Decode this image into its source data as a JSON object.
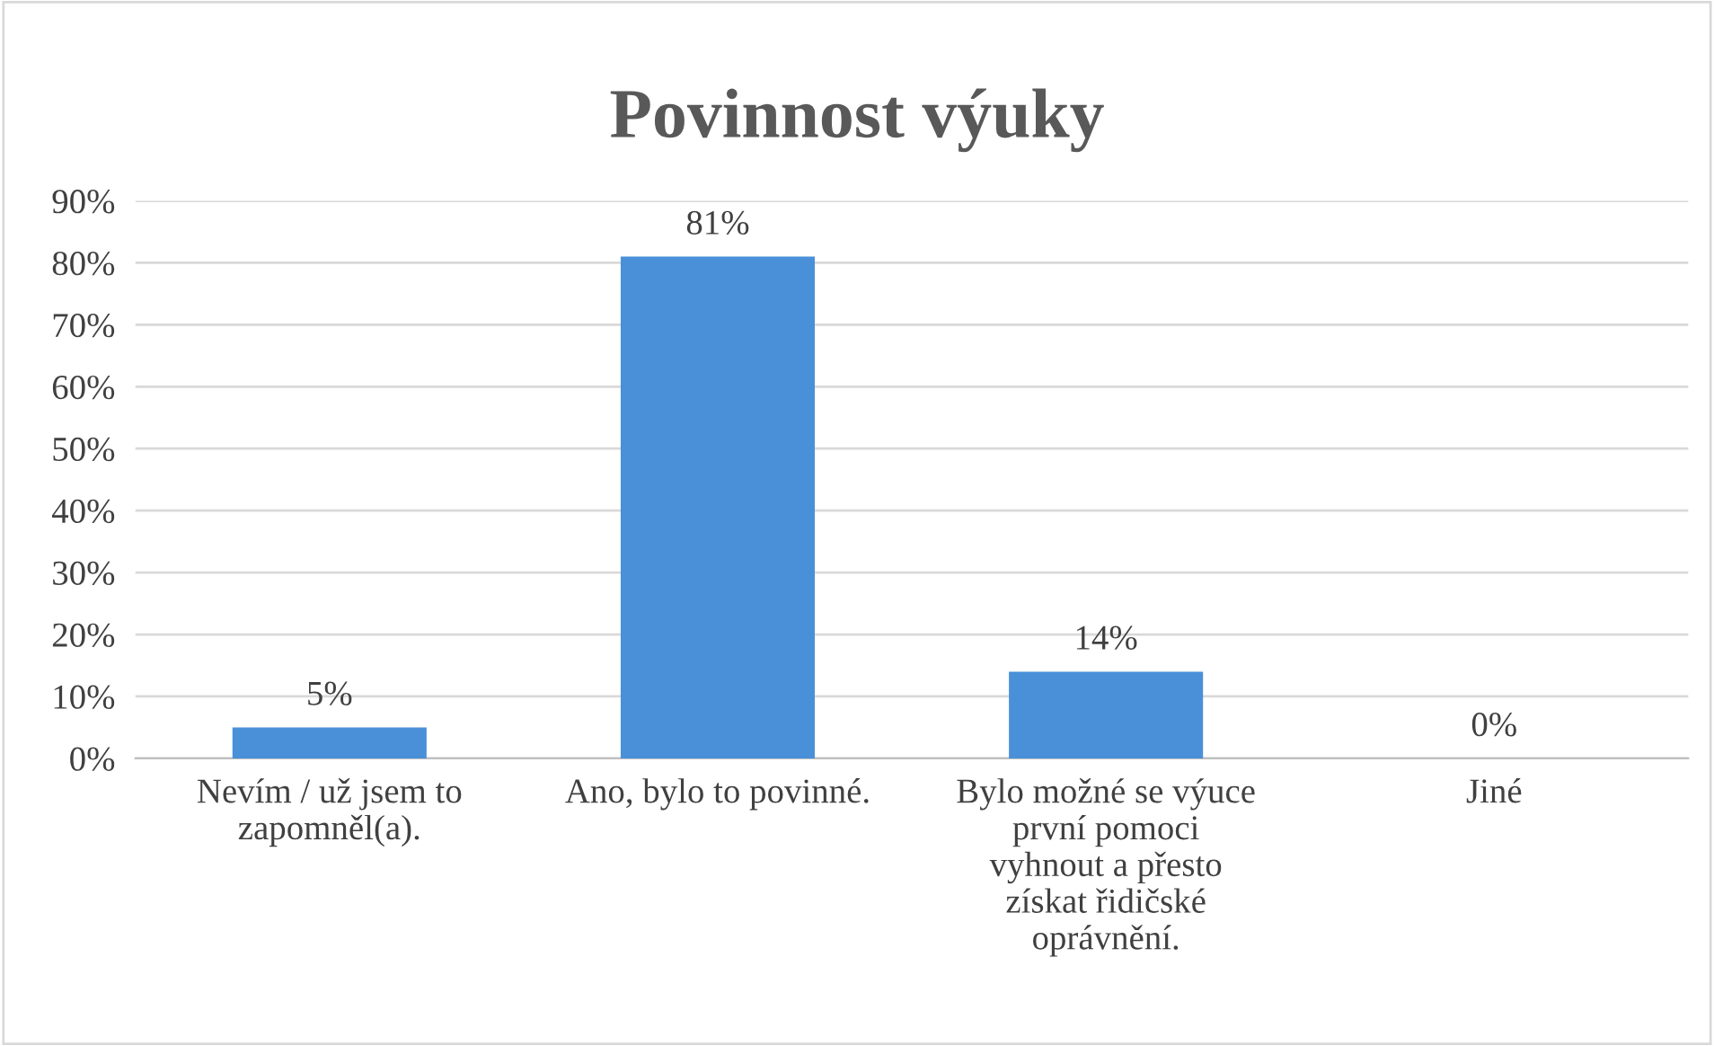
{
  "chart_data": {
    "type": "bar",
    "title": "Povinnost výuky",
    "categories": [
      "Nevím / už jsem to\nzapomněl(a).",
      "Ano, bylo to povinné.",
      "Bylo možné se výuce\nprvní pomoci\nvyhnout a přesto\nzískat řidičské\noprávnění.",
      "Jiné"
    ],
    "values": [
      5,
      81,
      14,
      0
    ],
    "color": "#4a90d9",
    "value_labels": [
      "5%",
      "81%",
      "14%",
      "0%"
    ],
    "ylim": [
      0,
      90
    ],
    "yticks": [
      {
        "value": 0,
        "label": "0%"
      },
      {
        "value": 10,
        "label": "10%"
      },
      {
        "value": 20,
        "label": "20%"
      },
      {
        "value": 30,
        "label": "30%"
      },
      {
        "value": 40,
        "label": "40%"
      },
      {
        "value": 50,
        "label": "50%"
      },
      {
        "value": 60,
        "label": "60%"
      },
      {
        "value": 70,
        "label": "70%"
      },
      {
        "value": 80,
        "label": "80%"
      },
      {
        "value": 90,
        "label": "90%"
      }
    ],
    "grid": "y",
    "legend": false
  }
}
